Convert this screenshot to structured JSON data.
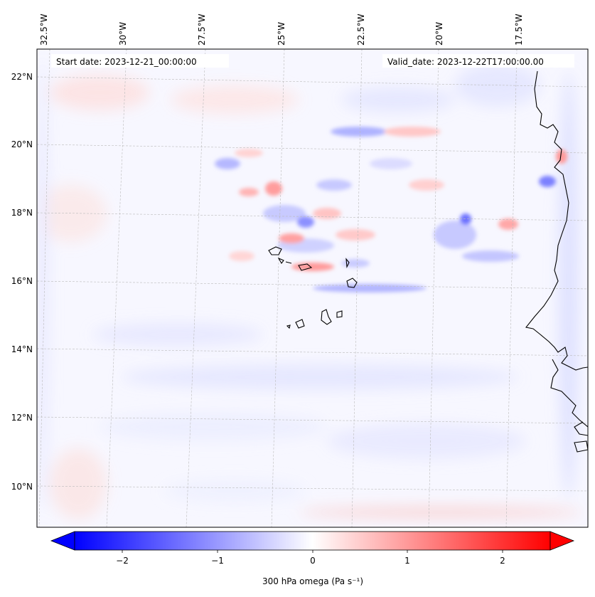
{
  "header": {
    "start_label": "Start date: 2023-12-21_00:00:00",
    "valid_label": "Valid_date: 2023-12-22T17:00:00.00"
  },
  "axes": {
    "longitude_labels": [
      "32.5°W",
      "30°W",
      "27.5°W",
      "25°W",
      "22.5°W",
      "20°W",
      "17.5°W"
    ],
    "latitude_labels": [
      "22°N",
      "20°N",
      "18°N",
      "16°N",
      "14°N",
      "12°N",
      "10°N"
    ]
  },
  "colorbar": {
    "label": "300 hPa omega (Pa s⁻¹)",
    "ticks": [
      "−2",
      "−1",
      "0",
      "1",
      "2"
    ],
    "min": -2.5,
    "max": 2.5,
    "low_color": "#0000ff",
    "mid_color": "#ffffff",
    "high_color": "#ff0000"
  },
  "colors": {
    "frame": "#000000",
    "grid": "#bbbbbb",
    "coast": "#000000"
  }
}
